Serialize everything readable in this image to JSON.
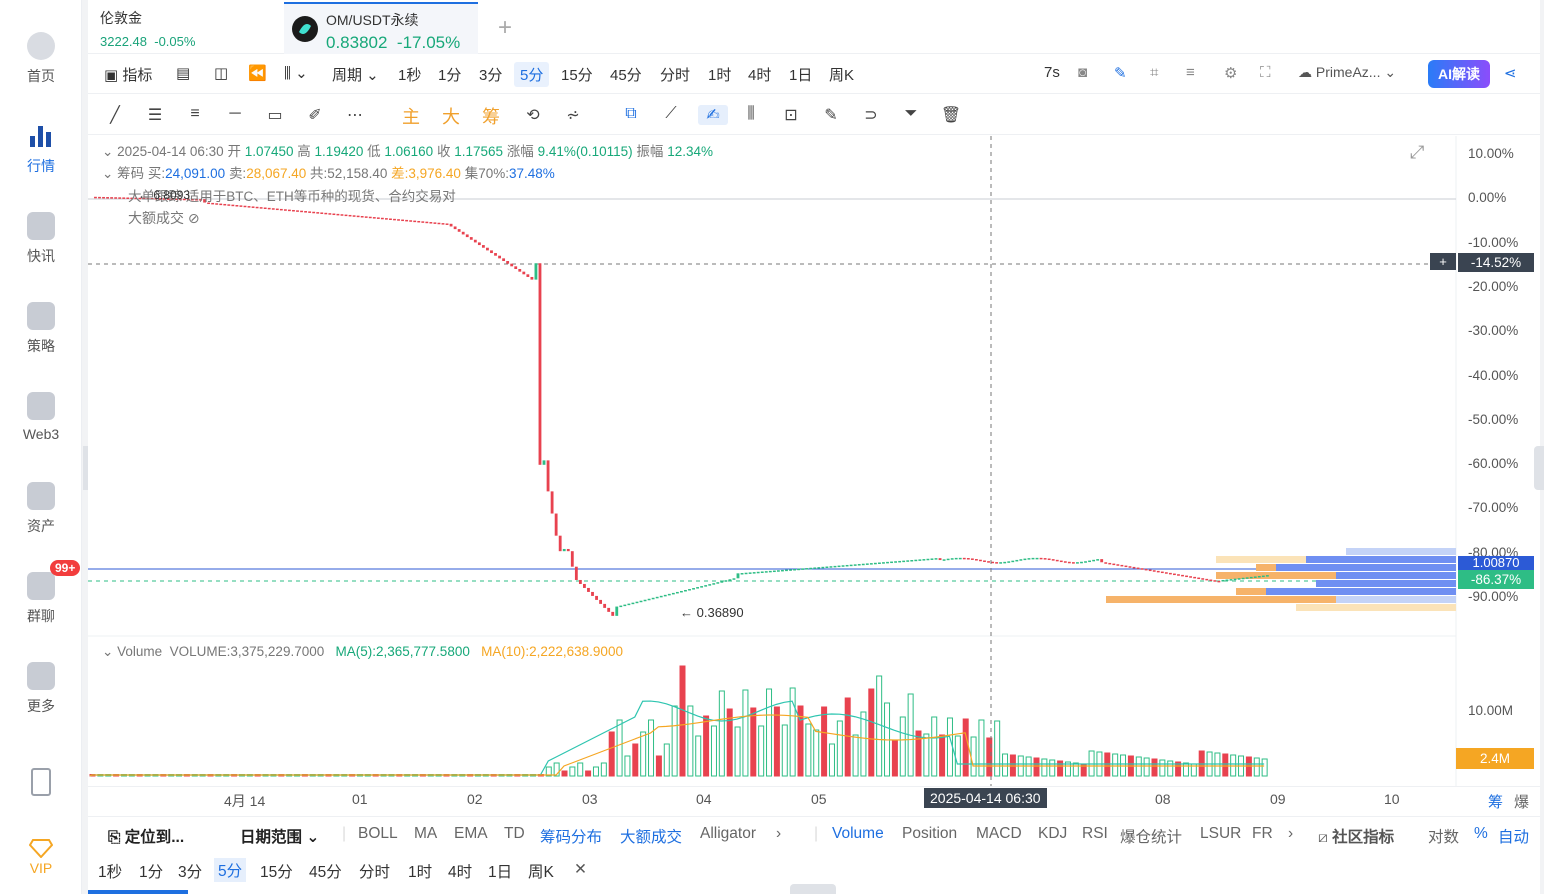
{
  "sidebar": {
    "items": [
      {
        "label": "首页",
        "icon": "home-icon"
      },
      {
        "label": "行情",
        "icon": "market-chart-icon",
        "active": true
      },
      {
        "label": "快讯",
        "icon": "news-icon"
      },
      {
        "label": "策略",
        "icon": "robot-icon"
      },
      {
        "label": "Web3",
        "icon": "web3-icon"
      },
      {
        "label": "资产",
        "icon": "wallet-icon"
      },
      {
        "label": "群聊",
        "icon": "chat-icon",
        "badge": "99+"
      },
      {
        "label": "更多",
        "icon": "more-grid-icon"
      },
      {
        "label": "",
        "icon": "phone-icon"
      },
      {
        "label": "VIP",
        "icon": "diamond-icon"
      }
    ]
  },
  "tabs": [
    {
      "name": "伦敦金",
      "price": "3222.48",
      "change": "-0.05%"
    },
    {
      "name": "OM/USDT永续",
      "price": "0.83802",
      "change": "-17.05%",
      "active": true
    }
  ],
  "toolbar": {
    "indicator": "指标",
    "period": "周期",
    "intervals": [
      "1秒",
      "1分",
      "3分",
      "5分",
      "15分",
      "45分",
      "分时",
      "1时",
      "4时",
      "1日",
      "周K"
    ],
    "selected_interval": "5分",
    "refresh": "7s",
    "account": "PrimeAz...",
    "ai": "AI解读"
  },
  "draw_tools": {
    "zh": [
      "主",
      "大",
      "筹"
    ]
  },
  "info": {
    "date": "2025-04-14 06:30",
    "open_label": "开",
    "open": "1.07450",
    "high_label": "高",
    "high": "1.19420",
    "low_label": "低",
    "low": "1.06160",
    "close_label": "收",
    "close": "1.17565",
    "chg_label": "涨幅",
    "chg": "9.41%(0.10115)",
    "amp_label": "振幅",
    "amp": "12.34%",
    "chip_label": "筹码",
    "buy_label": "买:",
    "buy": "24,091.00",
    "sell_label": "卖:",
    "sell": "28,067.40",
    "total_label": "共:",
    "total": "52,158.40",
    "diff_label": "差:",
    "diff": "3,976.40",
    "set_label": "集70%:",
    "set": "37.48%",
    "hint": "大单跟踪 适用于BTC、ETH等币种的现货、合约交易对",
    "big_trade": "大额成交",
    "peak": "6.8093",
    "low_mark": "0.36890"
  },
  "volume": {
    "label": "Volume",
    "vol": "VOLUME:3,375,229.7000",
    "ma5": "MA(5):2,365,777.5800",
    "ma10": "MA(10):2,222,638.9000",
    "axis": "10.00M",
    "current": "2.4M"
  },
  "chart_data": {
    "type": "candlestick",
    "y_ticks": [
      "10.00%",
      "0.00%",
      "-10.00%",
      "-20.00%",
      "-30.00%",
      "-40.00%",
      "-50.00%",
      "-60.00%",
      "-70.00%",
      "-80.00%",
      "-90.00%"
    ],
    "crosshair_value": "-14.52%",
    "current_price": "1.00870",
    "current_pct": "-86.37%",
    "x_ticks": [
      "4月 14",
      "01",
      "02",
      "03",
      "04",
      "05",
      "2025-04-14 06:30",
      "08",
      "09",
      "10"
    ],
    "crosshair_x": "2025-04-14 06:30"
  },
  "bottom": {
    "locate": "定位到...",
    "date_range": "日期范围",
    "main_ind": [
      "BOLL",
      "MA",
      "EMA",
      "TD",
      "筹码分布",
      "大额成交",
      "Alligator"
    ],
    "sub_ind": [
      "Volume",
      "Position",
      "MACD",
      "KDJ",
      "RSI",
      "爆仓统计",
      "LSUR",
      "FR"
    ],
    "community": "社区指标",
    "log": "对数",
    "pct": "%",
    "auto": "自动",
    "intervals": [
      "1秒",
      "1分",
      "3分",
      "5分",
      "15分",
      "45分",
      "分时",
      "1时",
      "4时",
      "1日",
      "周K"
    ],
    "selected": "5分",
    "right": [
      "筹",
      "爆"
    ]
  },
  "colors": {
    "up": "#2ebd85",
    "down": "#e8424f",
    "accent": "#1e6fe0"
  }
}
